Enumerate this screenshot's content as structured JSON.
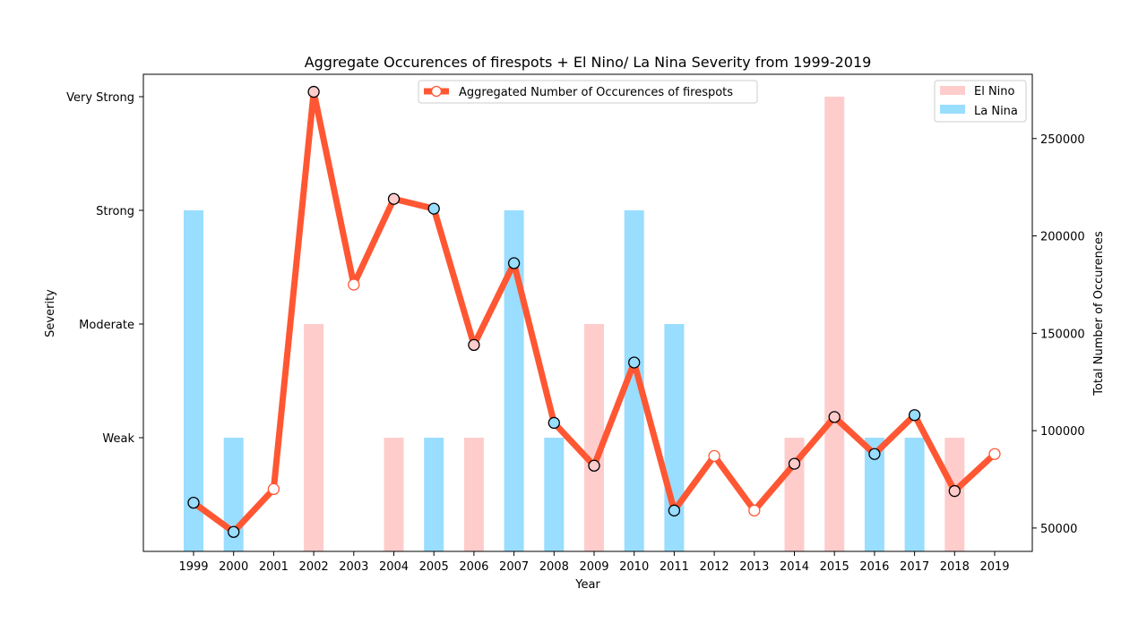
{
  "chart_data": {
    "type": "bar",
    "title": "Aggregate Occurences of firespots + El Nino/ La Nina Severity from 1999-2019",
    "xlabel": "Year",
    "ylabel_left": "Severity",
    "ylabel_right": "Total Number of Occurences",
    "categories": [
      "1999",
      "2000",
      "2001",
      "2002",
      "2003",
      "2004",
      "2005",
      "2006",
      "2007",
      "2008",
      "2009",
      "2010",
      "2011",
      "2012",
      "2013",
      "2014",
      "2015",
      "2016",
      "2017",
      "2018",
      "2019"
    ],
    "severity_levels": [
      "Weak",
      "Moderate",
      "Strong",
      "Very Strong"
    ],
    "right_ticks": [
      50000,
      100000,
      150000,
      200000,
      250000
    ],
    "right_ylim": [
      38000,
      283000
    ],
    "series": [
      {
        "name": "El Nino",
        "kind": "bar",
        "color": "#ffcccc",
        "values": [
          0,
          0,
          0,
          2,
          0,
          1,
          0,
          1,
          0,
          0,
          2,
          0,
          0,
          0,
          0,
          1,
          4,
          0,
          0,
          1,
          0
        ]
      },
      {
        "name": "La Nina",
        "kind": "bar",
        "color": "#99ddff",
        "values": [
          3,
          1,
          0,
          0,
          0,
          0,
          1,
          0,
          3,
          1,
          0,
          3,
          2,
          0,
          0,
          0,
          0,
          1,
          1,
          0,
          0
        ]
      },
      {
        "name": "Aggregated Number of Occurences of firespots",
        "kind": "line",
        "color": "#ff5733",
        "values": [
          63000,
          48000,
          70000,
          274000,
          175000,
          219000,
          214000,
          144000,
          186000,
          104000,
          82000,
          135000,
          59000,
          87000,
          59000,
          83000,
          107000,
          88000,
          108000,
          69000,
          88000
        ]
      }
    ],
    "legend_line_position": "top-center",
    "legend_bars_position": "top-right",
    "grid": false
  }
}
